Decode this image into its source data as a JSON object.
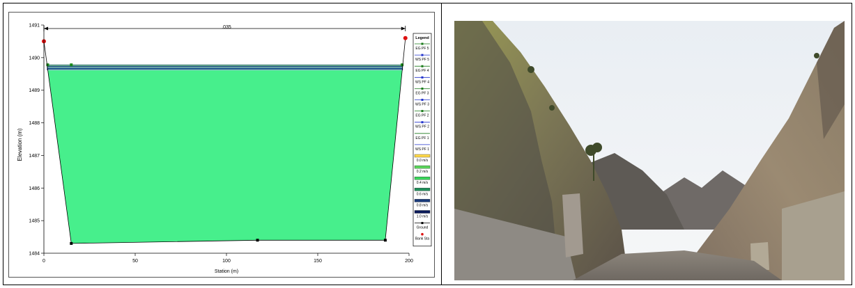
{
  "chart_data": {
    "type": "area",
    "title": "",
    "xlabel": "Station (m)",
    "ylabel": "Elevation (m)",
    "xlim": [
      0,
      200
    ],
    "ylim": [
      1484,
      1491
    ],
    "x_ticks": [
      "0",
      "50",
      "100",
      "150",
      "200"
    ],
    "y_ticks": [
      "1484",
      "1485",
      "1486",
      "1487",
      "1488",
      "1489",
      "1490",
      "1491"
    ],
    "manning_n": ".035",
    "ground": {
      "name": "Ground",
      "x": [
        0,
        15,
        117,
        187,
        198
      ],
      "y": [
        1490.5,
        1484.3,
        1484.4,
        1484.4,
        1490.6
      ]
    },
    "bank_stations": {
      "name": "Bank Sta",
      "x": [
        0,
        198
      ],
      "y": [
        1490.5,
        1490.6
      ]
    },
    "water_surfaces": [
      {
        "name": "WS PF 5",
        "elevation": 1489.62
      },
      {
        "name": "WS PF 4",
        "elevation": 1489.66
      },
      {
        "name": "WS PF 3",
        "elevation": 1489.7
      },
      {
        "name": "WS PF 2",
        "elevation": 1489.73
      },
      {
        "name": "WS PF 1",
        "elevation": 1489.76
      }
    ],
    "energy_grades": [
      {
        "name": "EG PF 5",
        "elevation": 1489.64
      },
      {
        "name": "EG PF 4",
        "elevation": 1489.68
      },
      {
        "name": "EG PF 3",
        "elevation": 1489.72
      },
      {
        "name": "EG PF 2",
        "elevation": 1489.75
      },
      {
        "name": "EG PF 1",
        "elevation": 1489.78
      }
    ],
    "legend": {
      "title": "Legend",
      "position": "right",
      "entries": [
        {
          "label": "EG PF 5",
          "kind": "line",
          "color": "#1a7a1a",
          "marker": "square"
        },
        {
          "label": "WS PF 5",
          "kind": "line",
          "color": "#2233cc",
          "marker": "square"
        },
        {
          "label": "EG PF 4",
          "kind": "line",
          "color": "#1a7a1a",
          "marker": "x"
        },
        {
          "label": "WS PF 4",
          "kind": "line",
          "color": "#2233cc",
          "marker": "circle"
        },
        {
          "label": "EG PF 3",
          "kind": "line",
          "color": "#1a7a1a",
          "marker": "dot"
        },
        {
          "label": "WS PF 3",
          "kind": "line",
          "color": "#2233cc",
          "marker": "dot"
        },
        {
          "label": "EG PF 2",
          "kind": "line",
          "color": "#1a7a1a",
          "marker": "triangle"
        },
        {
          "label": "WS PF 2",
          "kind": "line",
          "color": "#2233cc",
          "marker": "diamond"
        },
        {
          "label": "EG PF 1",
          "kind": "line",
          "color": "#1a7a1a",
          "marker": "none"
        },
        {
          "label": "WS PF 1",
          "kind": "line",
          "color": "#2233cc",
          "marker": "none"
        },
        {
          "label": "0.0 m/s",
          "kind": "swatch",
          "color": "#ffd94a"
        },
        {
          "label": "0.2 m/s",
          "kind": "swatch",
          "color": "#5bd65b"
        },
        {
          "label": "0.4 m/s",
          "kind": "swatch",
          "color": "#3ad65a"
        },
        {
          "label": "0.6 m/s",
          "kind": "swatch",
          "color": "#1f8f5a"
        },
        {
          "label": "0.8 m/s",
          "kind": "swatch",
          "color": "#1a3a7a"
        },
        {
          "label": "1.0 m/s",
          "kind": "swatch",
          "color": "#0b1a5a"
        },
        {
          "label": "Ground",
          "kind": "line",
          "color": "#000000",
          "marker": "square"
        },
        {
          "label": "Bank Sta",
          "kind": "marker",
          "color": "#dd1111",
          "marker": "circle"
        }
      ]
    },
    "colors": {
      "flow_fill": "#47ef8c",
      "ground_line": "#000000",
      "bank": "#dd1111",
      "ws_band": "#3b6fd8",
      "eg_marker": "#1a8a1a"
    }
  },
  "photo": {
    "subject": "rocky-canyon-valley-photo"
  }
}
